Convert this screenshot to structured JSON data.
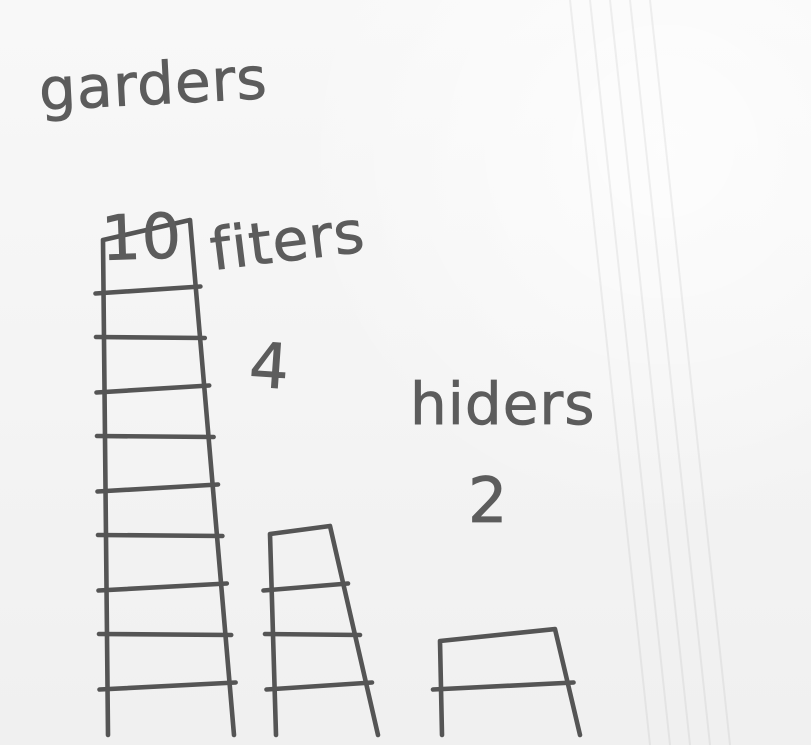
{
  "chart_data": {
    "type": "bar",
    "categories": [
      "garders",
      "fiters",
      "hiders"
    ],
    "values": [
      10,
      4,
      2
    ],
    "value_labels": [
      "10",
      "4",
      "2"
    ],
    "grid": false,
    "legend": "none",
    "style": "hand-drawn"
  }
}
